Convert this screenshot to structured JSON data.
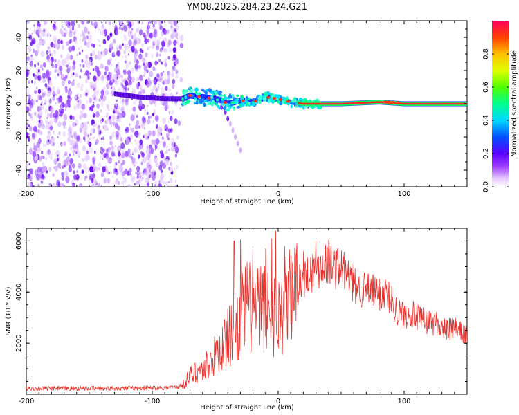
{
  "title": "YM08.2025.284.23.24.G21",
  "chart_data": [
    {
      "type": "heatmap",
      "xlabel": "Height of straight line (km)",
      "ylabel": "Frequency (Hz)",
      "xlim": [
        -200,
        150
      ],
      "ylim": [
        -50,
        50
      ],
      "xticks": [
        -200,
        -100,
        0,
        100
      ],
      "xtick_labels": [
        "-200",
        "-100",
        "0",
        "100"
      ],
      "yticks": [
        -40,
        -20,
        0,
        20,
        40
      ],
      "ytick_labels": [
        "-40",
        "-20",
        "0",
        "20",
        "40"
      ],
      "noise_region_x": [
        -200,
        -76
      ],
      "signal_start_x": -130,
      "ridge_trace": {
        "x": [
          -130,
          -110,
          -90,
          -76,
          -70,
          -60,
          -50,
          -45,
          -40,
          -35,
          -30,
          -20,
          -10,
          0,
          10,
          20,
          50,
          80,
          100,
          150
        ],
        "y": [
          6,
          4,
          3,
          3,
          5,
          4,
          3,
          2,
          0,
          1,
          2,
          1,
          4,
          3,
          1,
          0,
          0,
          1,
          0,
          0
        ]
      },
      "scatter_tail": {
        "x": [
          -45,
          -42,
          -40,
          -38,
          -36,
          -34,
          -32,
          -30
        ],
        "y": [
          -2,
          -5,
          -9,
          -12,
          -16,
          -20,
          -24,
          -28
        ]
      },
      "colorbar": {
        "label": "Normalized spectral amplitude",
        "range": [
          0,
          1
        ],
        "ticks": [
          0.0,
          0.2,
          0.4,
          0.6,
          0.8
        ],
        "tick_labels": [
          "0.0",
          "0.2",
          "0.4",
          "0.6",
          "0.8"
        ]
      }
    },
    {
      "type": "line",
      "xlabel": "Height of straight line (km)",
      "ylabel": "SNR (10 * v/v)",
      "xlim": [
        -200,
        150
      ],
      "ylim": [
        0,
        6500
      ],
      "xticks": [
        -200,
        -100,
        0,
        100
      ],
      "xtick_labels": [
        "-200",
        "-100",
        "0",
        "100"
      ],
      "yticks": [
        2000,
        4000,
        6000
      ],
      "ytick_labels": [
        "2000",
        "4000",
        "6000"
      ],
      "color": "#e8322d",
      "series": [
        {
          "name": "SNR",
          "x": [
            -200,
            -180,
            -160,
            -140,
            -120,
            -100,
            -90,
            -80,
            -76,
            -70,
            -65,
            -60,
            -55,
            -50,
            -45,
            -40,
            -35,
            -30,
            -25,
            -20,
            -15,
            -10,
            -5,
            0,
            5,
            10,
            15,
            20,
            25,
            30,
            35,
            40,
            45,
            50,
            55,
            60,
            65,
            70,
            75,
            80,
            85,
            90,
            95,
            100,
            105,
            110,
            115,
            120,
            125,
            130,
            135,
            140,
            145,
            150
          ],
          "values": [
            220,
            230,
            225,
            230,
            240,
            250,
            260,
            280,
            350,
            700,
            900,
            1000,
            1200,
            1500,
            1800,
            2200,
            2600,
            3000,
            3400,
            3400,
            3300,
            3500,
            3200,
            3000,
            3500,
            3900,
            4200,
            4500,
            4800,
            4900,
            5100,
            5200,
            5000,
            4900,
            4700,
            4300,
            4100,
            4100,
            4000,
            3900,
            4000,
            3700,
            3200,
            3100,
            3200,
            3000,
            2900,
            2800,
            2800,
            2600,
            2500,
            2600,
            2400,
            2300
          ]
        }
      ],
      "spikes": {
        "x": [
          -35,
          -30,
          -20,
          -10,
          -5,
          -2,
          5,
          15,
          20,
          30,
          40
        ],
        "values": [
          6000,
          6050,
          5800,
          5700,
          6100,
          6400,
          5800,
          5900,
          5600,
          6000,
          6050
        ]
      }
    }
  ]
}
